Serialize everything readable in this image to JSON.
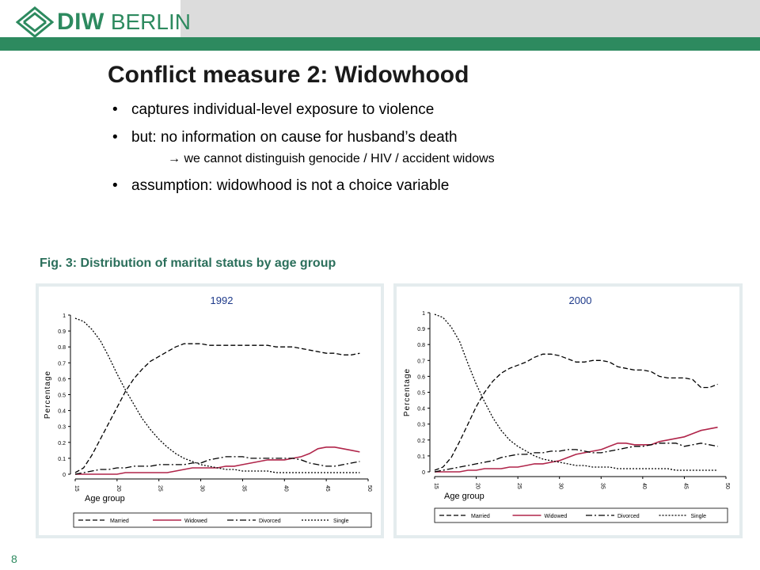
{
  "header": {
    "logo_text_1": "DIW",
    "logo_text_2": "BERLIN",
    "brand_color": "#2d8a5f"
  },
  "slide": {
    "title": "Conflict measure 2: Widowhood",
    "bullets": [
      "captures individual-level exposure to violence",
      "but: no information on cause for husband’s death",
      "assumption: widowhood is not a choice variable"
    ],
    "subbullet": "we cannot distinguish genocide / HIV / accident widows",
    "arrow": "→",
    "figure_caption": "Fig. 3: Distribution of marital status by age group",
    "page_number": "8"
  },
  "chart_data": [
    {
      "type": "line",
      "title": "1992",
      "xlabel": "Age group",
      "ylabel": "Percentage",
      "xlim": [
        15,
        50
      ],
      "ylim": [
        0,
        1
      ],
      "xticks": [
        15,
        20,
        25,
        30,
        35,
        40,
        45,
        50
      ],
      "yticks": [
        0,
        0.1,
        0.2,
        0.3,
        0.4,
        0.5,
        0.6,
        0.7,
        0.8,
        0.9,
        1
      ],
      "x": [
        15,
        16,
        17,
        18,
        19,
        20,
        21,
        22,
        23,
        24,
        25,
        26,
        27,
        28,
        29,
        30,
        31,
        32,
        33,
        34,
        35,
        36,
        37,
        38,
        39,
        40,
        41,
        42,
        43,
        44,
        45,
        46,
        47,
        48,
        49
      ],
      "legend_position": "bottom",
      "series": [
        {
          "name": "Married",
          "style": "dashed",
          "color": "#000000",
          "values": [
            0.01,
            0.04,
            0.12,
            0.22,
            0.32,
            0.42,
            0.52,
            0.6,
            0.66,
            0.71,
            0.74,
            0.77,
            0.8,
            0.82,
            0.82,
            0.82,
            0.81,
            0.81,
            0.81,
            0.81,
            0.81,
            0.81,
            0.81,
            0.81,
            0.8,
            0.8,
            0.8,
            0.79,
            0.78,
            0.77,
            0.76,
            0.76,
            0.75,
            0.75,
            0.76
          ]
        },
        {
          "name": "Widowed",
          "style": "solid",
          "color": "#b0254a",
          "values": [
            0.0,
            0.0,
            0.0,
            0.0,
            0.0,
            0.0,
            0.01,
            0.01,
            0.01,
            0.01,
            0.01,
            0.01,
            0.02,
            0.03,
            0.04,
            0.04,
            0.04,
            0.04,
            0.05,
            0.05,
            0.06,
            0.07,
            0.08,
            0.09,
            0.09,
            0.09,
            0.1,
            0.11,
            0.13,
            0.16,
            0.17,
            0.17,
            0.16,
            0.15,
            0.14
          ]
        },
        {
          "name": "Divorced",
          "style": "dashdot",
          "color": "#000000",
          "values": [
            0.0,
            0.01,
            0.02,
            0.03,
            0.03,
            0.04,
            0.04,
            0.05,
            0.05,
            0.05,
            0.06,
            0.06,
            0.06,
            0.06,
            0.07,
            0.07,
            0.09,
            0.1,
            0.11,
            0.11,
            0.11,
            0.1,
            0.1,
            0.1,
            0.1,
            0.1,
            0.1,
            0.09,
            0.07,
            0.06,
            0.05,
            0.05,
            0.06,
            0.07,
            0.08
          ]
        },
        {
          "name": "Single",
          "style": "dotted",
          "color": "#000000",
          "values": [
            0.98,
            0.96,
            0.91,
            0.84,
            0.74,
            0.63,
            0.53,
            0.44,
            0.35,
            0.28,
            0.22,
            0.17,
            0.13,
            0.1,
            0.08,
            0.06,
            0.05,
            0.04,
            0.03,
            0.03,
            0.02,
            0.02,
            0.02,
            0.02,
            0.01,
            0.01,
            0.01,
            0.01,
            0.01,
            0.01,
            0.01,
            0.01,
            0.01,
            0.01,
            0.01
          ]
        }
      ]
    },
    {
      "type": "line",
      "title": "2000",
      "xlabel": "Age group",
      "ylabel": "Percentage",
      "xlim": [
        15,
        50
      ],
      "ylim": [
        0,
        1
      ],
      "xticks": [
        15,
        20,
        25,
        30,
        35,
        40,
        45,
        50
      ],
      "yticks": [
        0,
        0.1,
        0.2,
        0.3,
        0.4,
        0.5,
        0.6,
        0.7,
        0.8,
        0.9,
        1
      ],
      "x": [
        15,
        16,
        17,
        18,
        19,
        20,
        21,
        22,
        23,
        24,
        25,
        26,
        27,
        28,
        29,
        30,
        31,
        32,
        33,
        34,
        35,
        36,
        37,
        38,
        39,
        40,
        41,
        42,
        43,
        44,
        45,
        46,
        47,
        48,
        49
      ],
      "legend_position": "bottom",
      "series": [
        {
          "name": "Married",
          "style": "dashed",
          "color": "#000000",
          "values": [
            0.01,
            0.03,
            0.09,
            0.19,
            0.3,
            0.41,
            0.5,
            0.57,
            0.62,
            0.65,
            0.67,
            0.69,
            0.72,
            0.74,
            0.74,
            0.73,
            0.71,
            0.69,
            0.69,
            0.7,
            0.7,
            0.69,
            0.66,
            0.65,
            0.64,
            0.64,
            0.63,
            0.6,
            0.59,
            0.59,
            0.59,
            0.58,
            0.53,
            0.53,
            0.55
          ]
        },
        {
          "name": "Widowed",
          "style": "solid",
          "color": "#b0254a",
          "values": [
            0.0,
            0.0,
            0.0,
            0.0,
            0.01,
            0.01,
            0.02,
            0.02,
            0.02,
            0.03,
            0.03,
            0.04,
            0.05,
            0.05,
            0.06,
            0.07,
            0.09,
            0.11,
            0.12,
            0.13,
            0.14,
            0.16,
            0.18,
            0.18,
            0.17,
            0.17,
            0.17,
            0.19,
            0.2,
            0.21,
            0.22,
            0.24,
            0.26,
            0.27,
            0.28
          ]
        },
        {
          "name": "Divorced",
          "style": "dashdot",
          "color": "#000000",
          "values": [
            0.0,
            0.01,
            0.02,
            0.03,
            0.04,
            0.05,
            0.06,
            0.07,
            0.09,
            0.1,
            0.11,
            0.11,
            0.12,
            0.12,
            0.13,
            0.13,
            0.14,
            0.14,
            0.13,
            0.12,
            0.12,
            0.13,
            0.14,
            0.15,
            0.16,
            0.16,
            0.17,
            0.18,
            0.18,
            0.18,
            0.16,
            0.17,
            0.18,
            0.17,
            0.16
          ]
        },
        {
          "name": "Single",
          "style": "dotted",
          "color": "#000000",
          "values": [
            0.99,
            0.97,
            0.91,
            0.82,
            0.68,
            0.55,
            0.44,
            0.34,
            0.26,
            0.2,
            0.16,
            0.13,
            0.1,
            0.08,
            0.07,
            0.06,
            0.05,
            0.04,
            0.04,
            0.03,
            0.03,
            0.03,
            0.02,
            0.02,
            0.02,
            0.02,
            0.02,
            0.02,
            0.02,
            0.01,
            0.01,
            0.01,
            0.01,
            0.01,
            0.01
          ]
        }
      ]
    }
  ]
}
